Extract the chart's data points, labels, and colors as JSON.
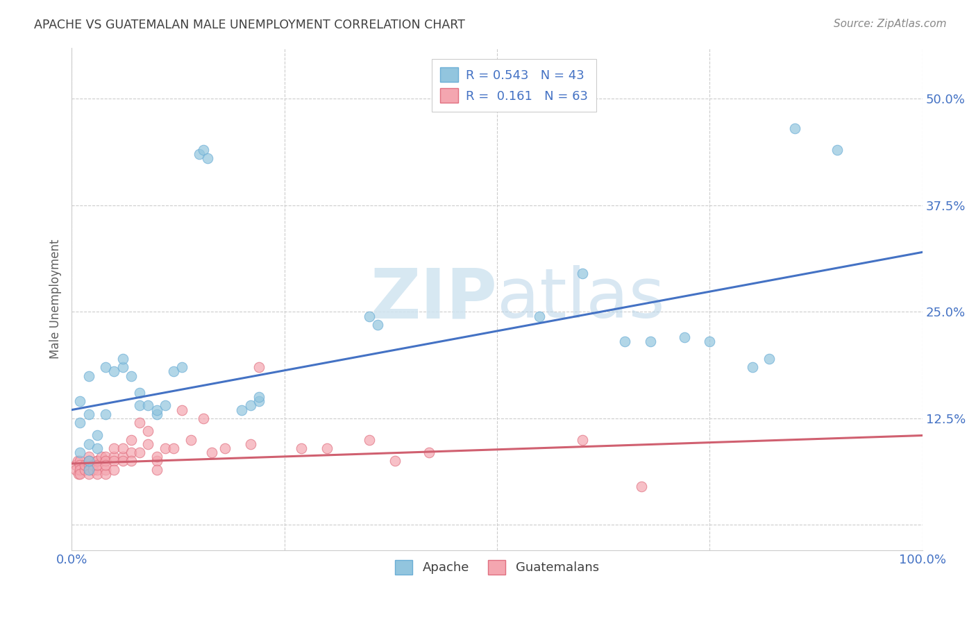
{
  "title": "APACHE VS GUATEMALAN MALE UNEMPLOYMENT CORRELATION CHART",
  "source": "Source: ZipAtlas.com",
  "ylabel": "Male Unemployment",
  "xlim": [
    0.0,
    1.0
  ],
  "ylim": [
    -0.03,
    0.56
  ],
  "xticks": [
    0.0,
    0.25,
    0.5,
    0.75,
    1.0
  ],
  "xticklabels": [
    "0.0%",
    "",
    "",
    "",
    "100.0%"
  ],
  "yticks": [
    0.0,
    0.125,
    0.25,
    0.375,
    0.5
  ],
  "yticklabels": [
    "",
    "12.5%",
    "25.0%",
    "37.5%",
    "50.0%"
  ],
  "apache_color": "#92c5de",
  "apache_edge_color": "#6baed6",
  "guatemalan_color": "#f4a6b0",
  "guatemalan_edge_color": "#e07080",
  "apache_R": 0.543,
  "apache_N": 43,
  "guatemalan_R": 0.161,
  "guatemalan_N": 63,
  "apache_scatter_x": [
    0.01,
    0.01,
    0.01,
    0.02,
    0.02,
    0.02,
    0.02,
    0.02,
    0.03,
    0.03,
    0.04,
    0.04,
    0.05,
    0.06,
    0.06,
    0.07,
    0.08,
    0.08,
    0.09,
    0.1,
    0.1,
    0.11,
    0.12,
    0.13,
    0.15,
    0.155,
    0.16,
    0.2,
    0.21,
    0.22,
    0.22,
    0.35,
    0.36,
    0.55,
    0.6,
    0.65,
    0.68,
    0.72,
    0.75,
    0.8,
    0.82,
    0.85,
    0.9
  ],
  "apache_scatter_y": [
    0.085,
    0.12,
    0.145,
    0.095,
    0.065,
    0.075,
    0.13,
    0.175,
    0.09,
    0.105,
    0.13,
    0.185,
    0.18,
    0.185,
    0.195,
    0.175,
    0.14,
    0.155,
    0.14,
    0.13,
    0.135,
    0.14,
    0.18,
    0.185,
    0.435,
    0.44,
    0.43,
    0.135,
    0.14,
    0.145,
    0.15,
    0.245,
    0.235,
    0.245,
    0.295,
    0.215,
    0.215,
    0.22,
    0.215,
    0.185,
    0.195,
    0.465,
    0.44
  ],
  "guatemalan_scatter_x": [
    0.005,
    0.005,
    0.007,
    0.008,
    0.01,
    0.01,
    0.01,
    0.01,
    0.015,
    0.015,
    0.02,
    0.02,
    0.02,
    0.02,
    0.02,
    0.02,
    0.025,
    0.025,
    0.03,
    0.03,
    0.03,
    0.03,
    0.03,
    0.035,
    0.04,
    0.04,
    0.04,
    0.04,
    0.04,
    0.04,
    0.05,
    0.05,
    0.05,
    0.05,
    0.06,
    0.06,
    0.06,
    0.07,
    0.07,
    0.07,
    0.08,
    0.08,
    0.09,
    0.09,
    0.1,
    0.1,
    0.1,
    0.11,
    0.12,
    0.13,
    0.14,
    0.155,
    0.165,
    0.18,
    0.21,
    0.22,
    0.27,
    0.3,
    0.35,
    0.38,
    0.42,
    0.6,
    0.67
  ],
  "guatemalan_scatter_y": [
    0.07,
    0.065,
    0.075,
    0.06,
    0.075,
    0.07,
    0.065,
    0.06,
    0.065,
    0.07,
    0.075,
    0.07,
    0.065,
    0.06,
    0.08,
    0.075,
    0.07,
    0.065,
    0.075,
    0.065,
    0.06,
    0.075,
    0.07,
    0.08,
    0.075,
    0.065,
    0.06,
    0.08,
    0.075,
    0.07,
    0.08,
    0.075,
    0.065,
    0.09,
    0.08,
    0.075,
    0.09,
    0.1,
    0.085,
    0.075,
    0.12,
    0.085,
    0.11,
    0.095,
    0.075,
    0.08,
    0.065,
    0.09,
    0.09,
    0.135,
    0.1,
    0.125,
    0.085,
    0.09,
    0.095,
    0.185,
    0.09,
    0.09,
    0.1,
    0.075,
    0.085,
    0.1,
    0.045
  ],
  "apache_line_x": [
    0.0,
    1.0
  ],
  "apache_line_y": [
    0.135,
    0.32
  ],
  "guatemalan_line_x": [
    0.0,
    1.0
  ],
  "guatemalan_line_y": [
    0.072,
    0.105
  ],
  "background_color": "#ffffff",
  "grid_color": "#cccccc",
  "title_color": "#404040",
  "tick_color": "#4472c4",
  "watermark_color": "#d0e4f0",
  "legend_labels": [
    "Apache",
    "Guatemalans"
  ]
}
